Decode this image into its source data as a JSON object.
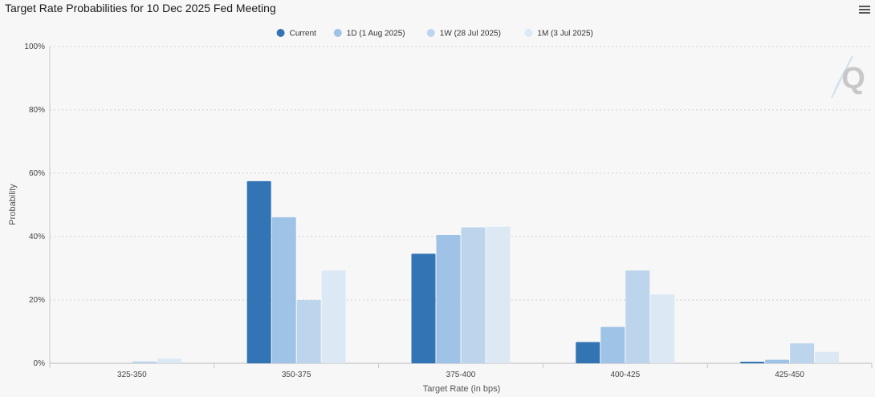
{
  "chart_data": {
    "type": "bar",
    "title": "Target Rate Probabilities for 10 Dec 2025 Fed Meeting",
    "xlabel": "Target Rate (in bps)",
    "ylabel": "Probability",
    "ylim": [
      0,
      100
    ],
    "yticks": [
      "0%",
      "20%",
      "40%",
      "60%",
      "80%",
      "100%"
    ],
    "categories": [
      "325-350",
      "350-375",
      "375-400",
      "400-425",
      "425-450"
    ],
    "series": [
      {
        "name": "Current",
        "color": "#3274b4",
        "values": [
          0.0,
          57.5,
          34.6,
          6.7,
          0.5
        ]
      },
      {
        "name": "1D (1 Aug 2025)",
        "color": "#9fc3e7",
        "values": [
          0.0,
          46.1,
          40.5,
          11.5,
          1.1
        ]
      },
      {
        "name": "1W (28 Jul 2025)",
        "color": "#bdd5ec",
        "values": [
          0.6,
          20.0,
          42.9,
          29.3,
          6.3
        ]
      },
      {
        "name": "1M (3 Jul 2025)",
        "color": "#dce9f5",
        "values": [
          1.5,
          29.3,
          43.1,
          21.7,
          3.6
        ]
      }
    ],
    "grid": true,
    "legend_position": "top-center"
  },
  "icons": {
    "menu": "menu-icon",
    "watermark": "q-logo"
  }
}
